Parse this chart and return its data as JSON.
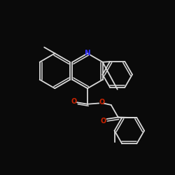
{
  "bg": "#0a0a0a",
  "bond_color": "#d8d8d8",
  "N_color": "#3333ff",
  "O_color": "#cc2200",
  "lw": 1.3,
  "atoms": {
    "N": {
      "label": "N",
      "color": "#3333ff"
    },
    "O": {
      "label": "O",
      "color": "#cc2200"
    }
  }
}
